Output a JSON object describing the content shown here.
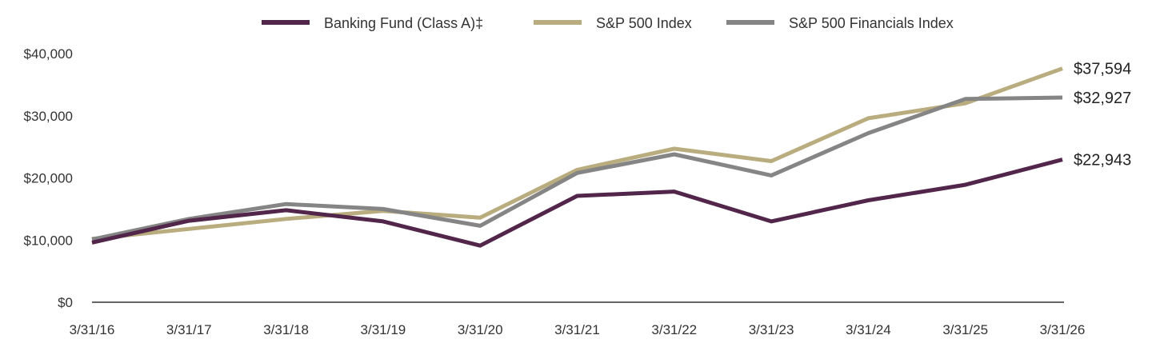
{
  "chart_data": {
    "type": "line",
    "title": "",
    "xlabel": "",
    "ylabel": "",
    "categories": [
      "3/31/16",
      "3/31/17",
      "3/31/18",
      "3/31/19",
      "3/31/20",
      "3/31/21",
      "3/31/22",
      "3/31/23",
      "3/31/24",
      "3/31/25",
      "3/31/26"
    ],
    "y_ticks": [
      "$0",
      "$10,000",
      "$20,000",
      "$30,000",
      "$40,000"
    ],
    "ylim": [
      0,
      40000
    ],
    "grid": false,
    "legend_position": "top",
    "series": [
      {
        "name": "Banking Fund (Class A)‡",
        "color": "#52254A",
        "values": [
          9600,
          13100,
          14800,
          13000,
          9100,
          17100,
          17800,
          13000,
          16400,
          18900,
          22943
        ],
        "end_label": "$22,943"
      },
      {
        "name": "S&P 500 Index",
        "color": "#B9AC7E",
        "values": [
          10200,
          11800,
          13400,
          14700,
          13600,
          21300,
          24700,
          22700,
          29600,
          32000,
          37594
        ],
        "end_label": "$37,594"
      },
      {
        "name": "S&P 500 Financials Index",
        "color": "#858585",
        "values": [
          10100,
          13400,
          15800,
          15000,
          12300,
          20800,
          23800,
          20400,
          27200,
          32700,
          32927
        ],
        "end_label": "$32,927"
      }
    ]
  }
}
